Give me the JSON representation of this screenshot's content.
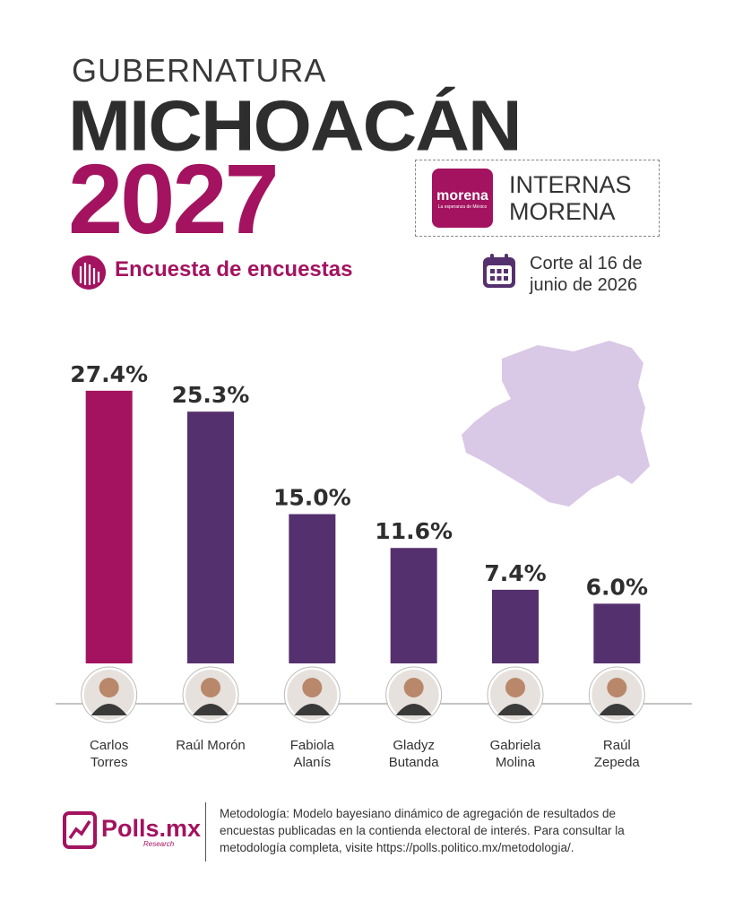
{
  "header": {
    "kicker": "GUBERNATURA",
    "state": "MICHOACÁN",
    "year": "2027",
    "subtitle": "Encuesta de encuestas",
    "badge": {
      "logo": "morena",
      "logo_tagline": "La esperanza de México",
      "text": "INTERNAS MORENA"
    },
    "date": "Corte al 16 de junio de 2026"
  },
  "chart_data": {
    "type": "bar",
    "categories": [
      "Carlos Torres",
      "Raúl Morón",
      "Fabiola Alanís",
      "Gladyz Butanda",
      "Gabriela Molina",
      "Raúl Zepeda"
    ],
    "values": [
      27.4,
      25.3,
      15.0,
      11.6,
      7.4,
      6.0
    ],
    "value_labels": [
      "27.4%",
      "25.3%",
      "15.0%",
      "11.6%",
      "7.4%",
      "6.0%"
    ],
    "colors": [
      "#a3135f",
      "#55306e",
      "#55306e",
      "#55306e",
      "#55306e",
      "#55306e"
    ],
    "ylim": [
      0,
      30
    ]
  },
  "footer": {
    "brand": "Polls.mx",
    "brand_sub": "Research",
    "methodology": "Metodología: Modelo bayesiano dinámico de agregación de resultados de encuestas publicadas en la contienda electoral de interés. Para consultar la metodología completa, visite https://polls.politico.mx/metodologia/."
  }
}
